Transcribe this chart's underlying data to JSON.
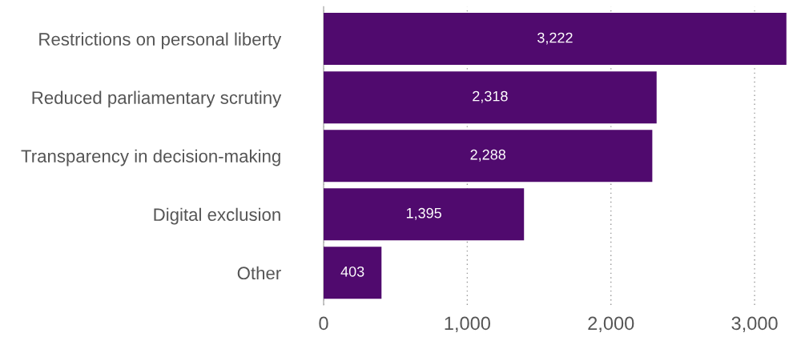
{
  "chart_data": {
    "type": "bar",
    "orientation": "horizontal",
    "categories": [
      "Restrictions on personal liberty",
      "Reduced parliamentary scrutiny",
      "Transparency in decision-making",
      "Digital exclusion",
      "Other"
    ],
    "values": [
      3222,
      2318,
      2288,
      1395,
      403
    ],
    "value_labels": [
      "3,222",
      "2,318",
      "2,288",
      "1,395",
      "403"
    ],
    "color": "#500a6e",
    "xlim": [
      0,
      3222
    ],
    "xticks": [
      0,
      {
        "value": 1000,
        "label": "1,000"
      },
      {
        "value": 2000,
        "label": "2,000"
      },
      {
        "value": 3000,
        "label": "3,000"
      }
    ],
    "grid": "x",
    "legend": false
  }
}
